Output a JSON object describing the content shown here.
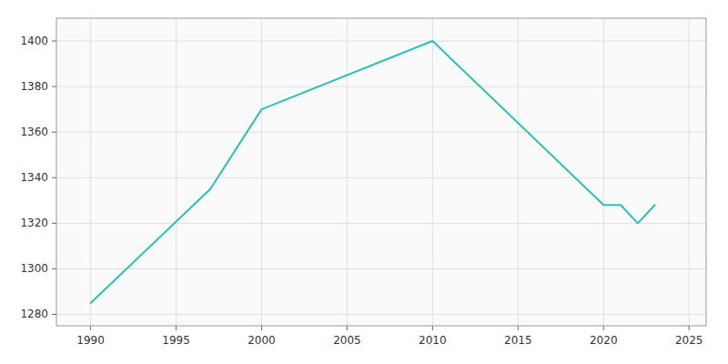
{
  "chart_data": {
    "type": "line",
    "x": [
      1990,
      1997,
      2000,
      2010,
      2020,
      2021,
      2022,
      2023
    ],
    "values": [
      1285,
      1335,
      1370,
      1400,
      1328,
      1328,
      1320,
      1328
    ],
    "color": "#2abfbf",
    "xlim": [
      1988,
      2026
    ],
    "ylim": [
      1275,
      1410
    ],
    "xticks": [
      1990,
      1995,
      2000,
      2005,
      2010,
      2015,
      2020,
      2025
    ],
    "yticks": [
      1280,
      1300,
      1320,
      1340,
      1360,
      1380,
      1400
    ],
    "grid": true
  }
}
